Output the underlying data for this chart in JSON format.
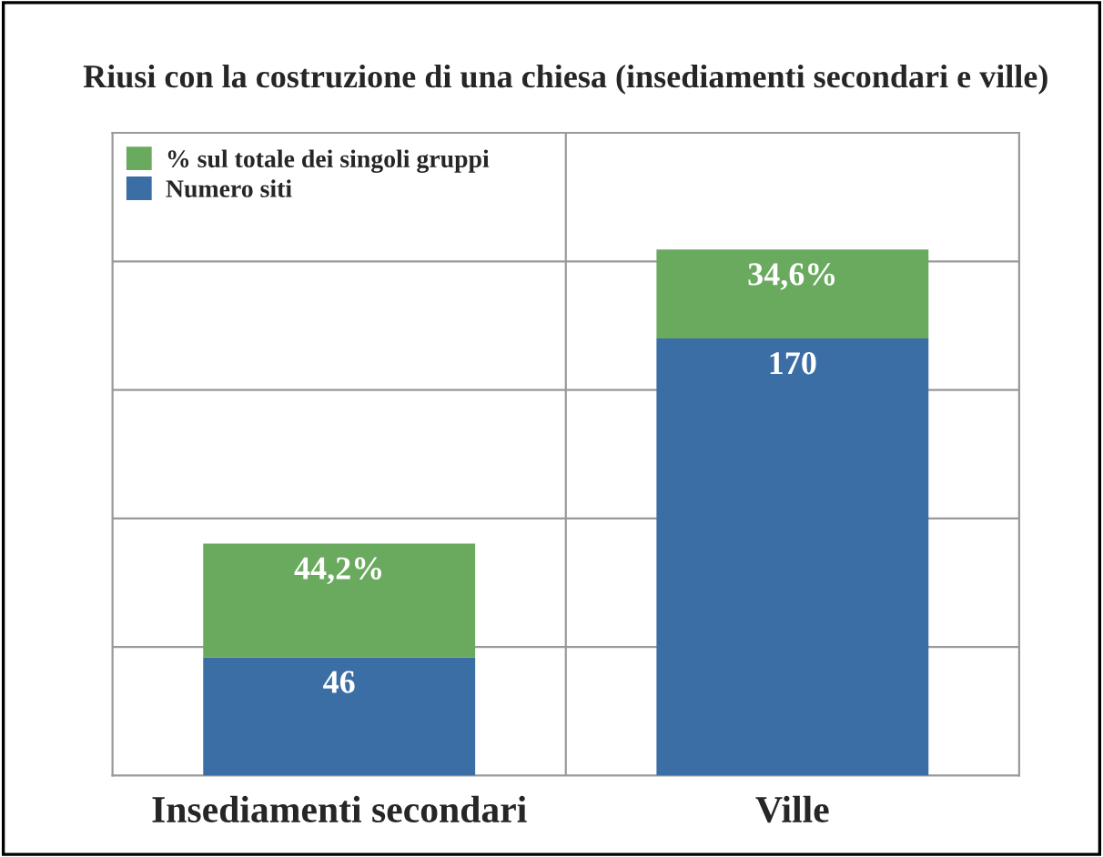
{
  "chart_data": {
    "type": "bar",
    "title": "Riusi con la costruzione di una chiesa (insediamenti secondari e ville)",
    "categories": [
      "Insediamenti secondari",
      "Ville"
    ],
    "stacked": true,
    "series": [
      {
        "name": "Numero siti",
        "color": "#3b6ea5",
        "values": [
          46,
          170
        ],
        "value_labels": [
          "46",
          "170"
        ]
      },
      {
        "name": "% sul totale dei singoli gruppi",
        "color": "#6aaa5f",
        "values": [
          44.2,
          34.6
        ],
        "value_labels": [
          "44,2%",
          "34,6%"
        ]
      }
    ],
    "ylim": [
      0,
      250
    ],
    "yticks": [
      {
        "value": 0,
        "label": null
      },
      {
        "value": 50,
        "label": null
      },
      {
        "value": 100,
        "label": null
      },
      {
        "value": 150,
        "label": null
      },
      {
        "value": 200,
        "label": null
      },
      {
        "value": 250,
        "label": null
      }
    ],
    "tick_labels": "x",
    "grid": true,
    "legend": "top left"
  }
}
